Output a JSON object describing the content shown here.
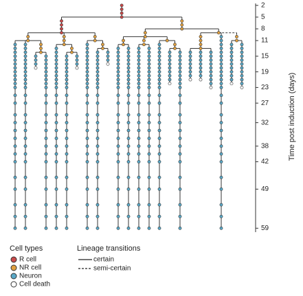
{
  "chart_data": {
    "type": "lineage",
    "y_label": "Time post induction (days)",
    "ylim": [
      1.5,
      60
    ],
    "yticks": [
      2,
      5,
      8,
      11,
      15,
      19,
      23,
      27,
      32,
      38,
      42,
      49,
      59
    ],
    "imaging_days": [
      2,
      3,
      4,
      5,
      6,
      7,
      8,
      9,
      10,
      11,
      12,
      13,
      14,
      15,
      16,
      17,
      18,
      19,
      20,
      21,
      22,
      23,
      25,
      27,
      30,
      32,
      34,
      36,
      38,
      40,
      42,
      46,
      49,
      53,
      56,
      59
    ],
    "death_color": "#ffffff",
    "tree": {
      "color": "#c94a4a",
      "from": 2,
      "to": 5,
      "children": [
        {
          "color": "#c94a4a",
          "from": 5,
          "to": 9,
          "children": [
            {
              "color": "#e0a040",
              "from": 9,
              "to": 11,
              "children": [
                {
                  "color": "#5aa9c8",
                  "from": 11,
                  "to": 59
                },
                {
                  "color": "#5aa9c8",
                  "from": 11,
                  "to": 59
                },
                {
                  "color": "#e0a040",
                  "from": 11,
                  "to": 14,
                  "children": [
                    {
                      "color": "#5aa9c8",
                      "from": 14,
                      "to": 18,
                      "death": true
                    },
                    {
                      "color": "#5aa9c8",
                      "from": 14,
                      "to": 59
                    }
                  ]
                }
              ]
            },
            {
              "color": "#e0a040",
              "from": 9,
              "to": 12,
              "children": [
                {
                  "color": "#5aa9c8",
                  "from": 12,
                  "to": 59
                },
                {
                  "color": "#e0a040",
                  "from": 12,
                  "to": 14,
                  "children": [
                    {
                      "color": "#5aa9c8",
                      "from": 14,
                      "to": 59
                    },
                    {
                      "color": "#5aa9c8",
                      "from": 14,
                      "to": 18,
                      "death": true
                    }
                  ]
                }
              ]
            },
            {
              "color": "#e0a040",
              "from": 9,
              "to": 11,
              "children": [
                {
                  "color": "#5aa9c8",
                  "from": 11,
                  "to": 59
                },
                {
                  "color": "#e0a040",
                  "from": 11,
                  "to": 13,
                  "children": [
                    {
                      "color": "#5aa9c8",
                      "from": 13,
                      "to": 59
                    },
                    {
                      "color": "#5aa9c8",
                      "from": 13,
                      "to": 17,
                      "death": true
                    }
                  ]
                }
              ]
            }
          ]
        },
        {
          "color": "#e0a040",
          "from": 5,
          "to": 8,
          "children": [
            {
              "color": "#e0a040",
              "from": 8,
              "to": 10,
              "children": [
                {
                  "color": "#e0a040",
                  "from": 10,
                  "to": 12,
                  "children": [
                    {
                      "color": "#5aa9c8",
                      "from": 12,
                      "to": 59
                    },
                    {
                      "color": "#5aa9c8",
                      "from": 12,
                      "to": 59
                    }
                  ]
                },
                {
                  "color": "#e0a040",
                  "from": 10,
                  "to": 12,
                  "style": "dashed",
                  "children": [
                    {
                      "color": "#5aa9c8",
                      "from": 12,
                      "to": 59
                    },
                    {
                      "color": "#5aa9c8",
                      "from": 12,
                      "to": 59
                    }
                  ]
                },
                {
                  "color": "#e0a040",
                  "from": 10,
                  "to": 11,
                  "children": [
                    {
                      "color": "#5aa9c8",
                      "from": 11,
                      "to": 59
                    },
                    {
                      "color": "#e0a040",
                      "from": 11,
                      "to": 13,
                      "children": [
                        {
                          "color": "#5aa9c8",
                          "from": 13,
                          "to": 22,
                          "death": true
                        },
                        {
                          "color": "#5aa9c8",
                          "from": 13,
                          "to": 59
                        }
                      ]
                    }
                  ]
                }
              ]
            },
            {
              "color": "#e0a040",
              "from": 8,
              "to": 9,
              "children": [
                {
                  "color": "#e0a040",
                  "from": 9,
                  "to": 13,
                  "children": [
                    {
                      "color": "#5aa9c8",
                      "from": 13,
                      "to": 21,
                      "death": true
                    },
                    {
                      "color": "#5aa9c8",
                      "from": 13,
                      "to": 21,
                      "death": true
                    },
                    {
                      "color": "#5aa9c8",
                      "from": 13,
                      "to": 23,
                      "death": true
                    }
                  ]
                },
                {
                  "color": "#5aa9c8",
                  "from": 9,
                  "to": 59
                },
                {
                  "color": "#e0a040",
                  "from": 9,
                  "to": 11,
                  "style": "dashed",
                  "children": [
                    {
                      "color": "#5aa9c8",
                      "from": 11,
                      "to": 22,
                      "death": true
                    },
                    {
                      "color": "#5aa9c8",
                      "from": 11,
                      "to": 23,
                      "death": true
                    }
                  ]
                }
              ]
            }
          ]
        }
      ]
    },
    "legend": {
      "cell_types_title": "Cell types",
      "cell_types": [
        {
          "label": "R cell",
          "color": "#c94a4a"
        },
        {
          "label": "NR cell",
          "color": "#e0a040"
        },
        {
          "label": "Neuron",
          "color": "#5aa9c8"
        },
        {
          "label": "Cell death",
          "color": "#ffffff"
        }
      ],
      "transitions_title": "Lineage transitions",
      "transitions": [
        {
          "label": "certain",
          "style": "solid"
        },
        {
          "label": "semi-certain",
          "style": "dashed"
        }
      ]
    }
  }
}
